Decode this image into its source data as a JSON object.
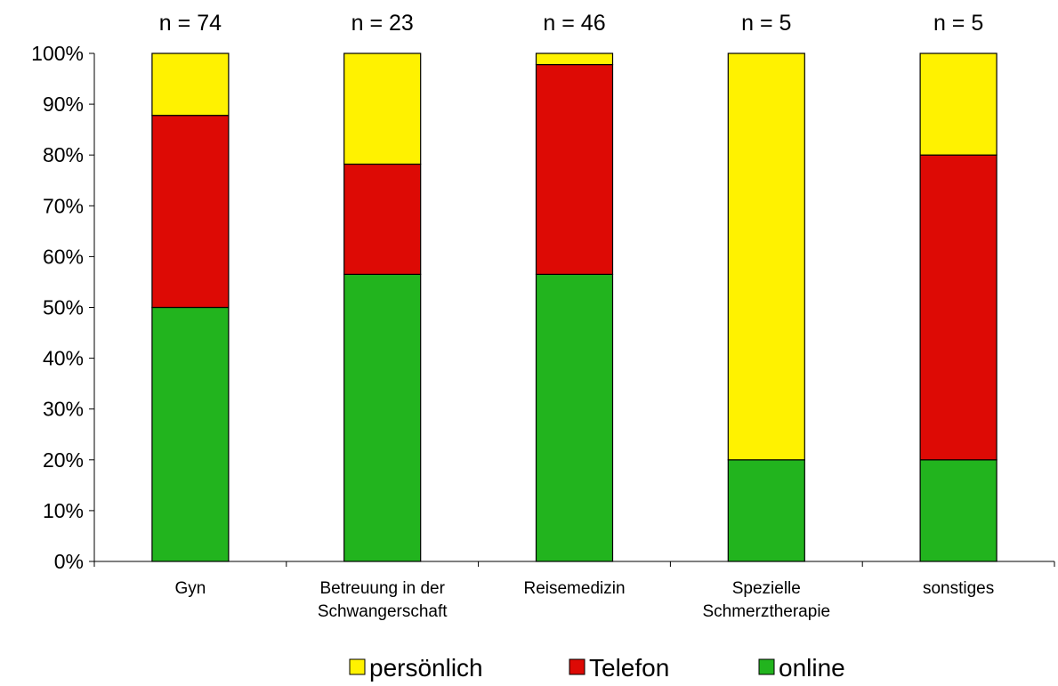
{
  "chart_data": {
    "type": "bar",
    "stacked": true,
    "categories": [
      [
        "Gyn"
      ],
      [
        "Betreuung in der",
        "Schwangerschaft"
      ],
      [
        "Reisemedizin"
      ],
      [
        "Spezielle",
        "Schmerztherapie"
      ],
      [
        "sonstiges"
      ]
    ],
    "n_labels": [
      "n = 74",
      "n = 23",
      "n = 46",
      "n = 5",
      "n = 5"
    ],
    "series": [
      {
        "name": "online",
        "color": "#22b41e",
        "values": [
          50.0,
          56.5,
          56.5,
          20.0,
          20.0
        ]
      },
      {
        "name": "Telefon",
        "color": "#dd0a05",
        "values": [
          37.8,
          21.7,
          41.3,
          0.0,
          60.0
        ]
      },
      {
        "name": "persönlich",
        "color": "#fff200",
        "values": [
          12.2,
          21.8,
          2.2,
          80.0,
          20.0
        ]
      }
    ],
    "legend_order": [
      "persönlich",
      "Telefon",
      "online"
    ],
    "y_ticks": [
      "0%",
      "10%",
      "20%",
      "30%",
      "40%",
      "50%",
      "60%",
      "70%",
      "80%",
      "90%",
      "100%"
    ],
    "ylim": [
      0,
      100
    ],
    "grid": false,
    "legend_position": "bottom"
  }
}
